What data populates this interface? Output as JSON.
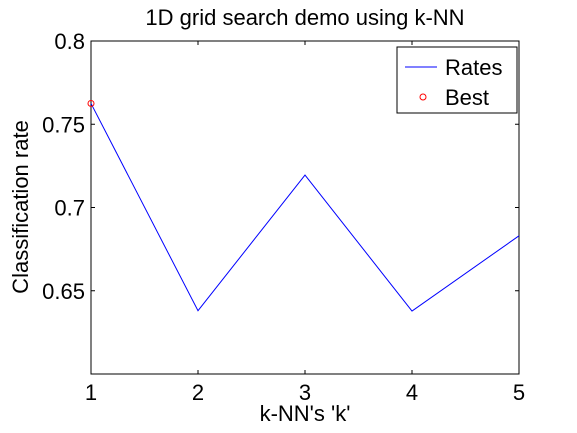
{
  "chart_data": {
    "type": "line",
    "title": "1D grid search demo using k-NN",
    "xlabel": "k-NN's 'k'",
    "ylabel": "Classification rate",
    "xlim": [
      1,
      5
    ],
    "ylim": [
      0.6,
      0.8
    ],
    "x_ticks": [
      1,
      2,
      3,
      4,
      5
    ],
    "x_tick_labels": [
      "1",
      "2",
      "3",
      "4",
      "5"
    ],
    "y_ticks": [
      0.65,
      0.7,
      0.75,
      0.8
    ],
    "y_tick_labels": [
      "0.65",
      "0.7",
      "0.75",
      "0.8"
    ],
    "grid": false,
    "legend_position": "top-right",
    "series": [
      {
        "name": "Rates",
        "kind": "line",
        "color": "#0000ff",
        "x": [
          1,
          2,
          3,
          4,
          5
        ],
        "y": [
          0.7625,
          0.638,
          0.7195,
          0.6378,
          0.683
        ]
      },
      {
        "name": "Best",
        "kind": "marker",
        "marker": "circle",
        "color": "#ff0000",
        "x": [
          1
        ],
        "y": [
          0.7625
        ]
      }
    ]
  }
}
